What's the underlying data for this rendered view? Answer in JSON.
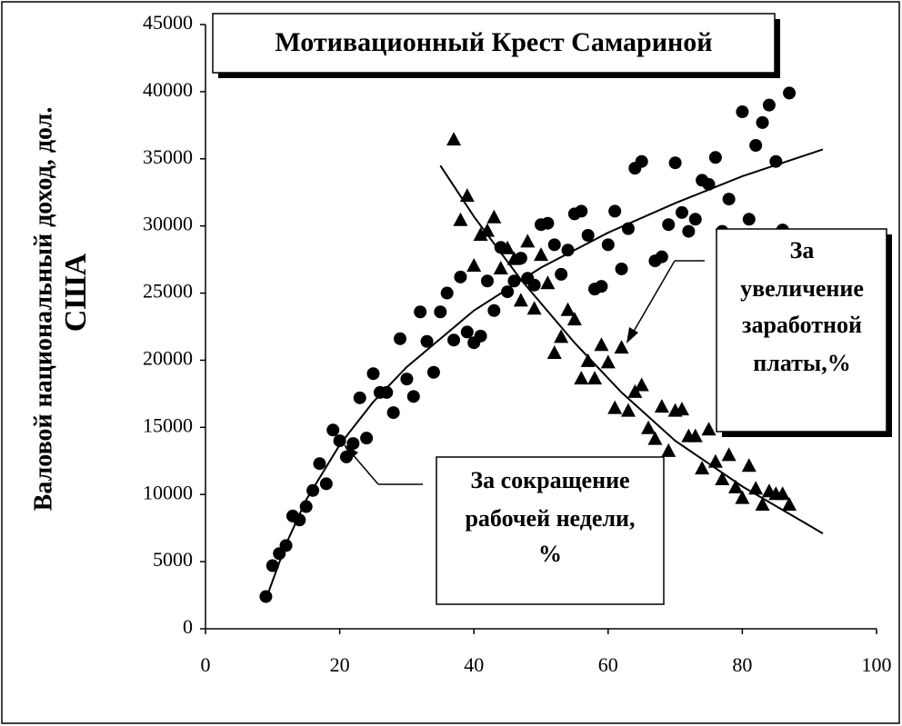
{
  "chart_data": {
    "type": "scatter",
    "title": "Мотивационный Крест Самариной",
    "ylabel": [
      "Валовой национальный доход, дол.",
      "США"
    ],
    "xlim": [
      0,
      100
    ],
    "xticks": [
      0,
      20,
      40,
      60,
      80,
      100
    ],
    "ylim": [
      0,
      45000
    ],
    "yticks": [
      0,
      5000,
      10000,
      15000,
      20000,
      25000,
      30000,
      35000,
      40000,
      45000
    ],
    "grid": false,
    "annotations": [
      [
        "За",
        "увеличение",
        "заработной",
        "платы,%"
      ],
      [
        "За сокращение",
        "рабочей недели,",
        "%"
      ]
    ],
    "series": [
      {
        "marker": "circle",
        "color": "#000000",
        "x": [
          9,
          10,
          11,
          12,
          13,
          14,
          15,
          16,
          17,
          18,
          19,
          20,
          21,
          22,
          23,
          24,
          25,
          26,
          27,
          28,
          29,
          30,
          31,
          32,
          33,
          34,
          35,
          36,
          37,
          38,
          39,
          40,
          41,
          42,
          43,
          44,
          45,
          46,
          47,
          48,
          49,
          50,
          51,
          52,
          53,
          54,
          55,
          56,
          57,
          58,
          59,
          60,
          61,
          62,
          63,
          64,
          65,
          67,
          68,
          69,
          70,
          71,
          72,
          73,
          74,
          75,
          76,
          77,
          78,
          80,
          81,
          82,
          83,
          84,
          85,
          86,
          87
        ],
        "values": [
          2400,
          4700,
          5600,
          6200,
          8400,
          8100,
          9100,
          10300,
          12300,
          10800,
          14800,
          14000,
          12800,
          13800,
          17200,
          14200,
          19000,
          17600,
          17600,
          16100,
          21600,
          18600,
          17300,
          23600,
          21400,
          19100,
          23600,
          25000,
          21500,
          26200,
          22100,
          21300,
          21800,
          25900,
          23700,
          28400,
          25100,
          25900,
          27600,
          26100,
          25600,
          30100,
          30200,
          28600,
          26400,
          28200,
          30900,
          31100,
          29300,
          25300,
          25500,
          28600,
          31100,
          26800,
          29800,
          34300,
          34800,
          27400,
          27700,
          30100,
          34700,
          31000,
          29600,
          30500,
          33400,
          33100,
          35100,
          29600,
          32000,
          38500,
          30500,
          36000,
          37700,
          39000,
          34800,
          29700,
          39900
        ],
        "trend": {
          "x": [
            9,
            12,
            15,
            20,
            25,
            30,
            40,
            50,
            60,
            70,
            80,
            92
          ],
          "values": [
            2200,
            6300,
            9600,
            13700,
            16900,
            19500,
            23700,
            26900,
            29500,
            31700,
            33700,
            35700
          ]
        }
      },
      {
        "marker": "triangle",
        "color": "#000000",
        "x": [
          37,
          38,
          39,
          40,
          41,
          42,
          43,
          44,
          45,
          46,
          47,
          48,
          49,
          50,
          51,
          52,
          53,
          54,
          55,
          56,
          57,
          58,
          59,
          60,
          61,
          62,
          63,
          64,
          65,
          66,
          67,
          68,
          69,
          70,
          71,
          72,
          73,
          74,
          75,
          76,
          77,
          78,
          79,
          80,
          81,
          82,
          83,
          84,
          85,
          86,
          87
        ],
        "values": [
          36400,
          30400,
          32200,
          27000,
          29300,
          29600,
          30600,
          26800,
          28300,
          27500,
          24400,
          28800,
          23800,
          27800,
          25700,
          20500,
          21700,
          23700,
          23000,
          18600,
          19900,
          18600,
          21100,
          19800,
          16400,
          20900,
          16200,
          17600,
          18100,
          14900,
          14100,
          16500,
          13200,
          16200,
          16300,
          14300,
          14300,
          11900,
          14800,
          12400,
          11100,
          12900,
          10500,
          9700,
          12100,
          10400,
          9200,
          10200,
          10000,
          10000,
          9200
        ],
        "trend": {
          "x": [
            35,
            40,
            47,
            55,
            62,
            70,
            80,
            92
          ],
          "values": [
            34500,
            30700,
            26000,
            21300,
            17600,
            14000,
            10600,
            7100
          ]
        }
      }
    ]
  }
}
